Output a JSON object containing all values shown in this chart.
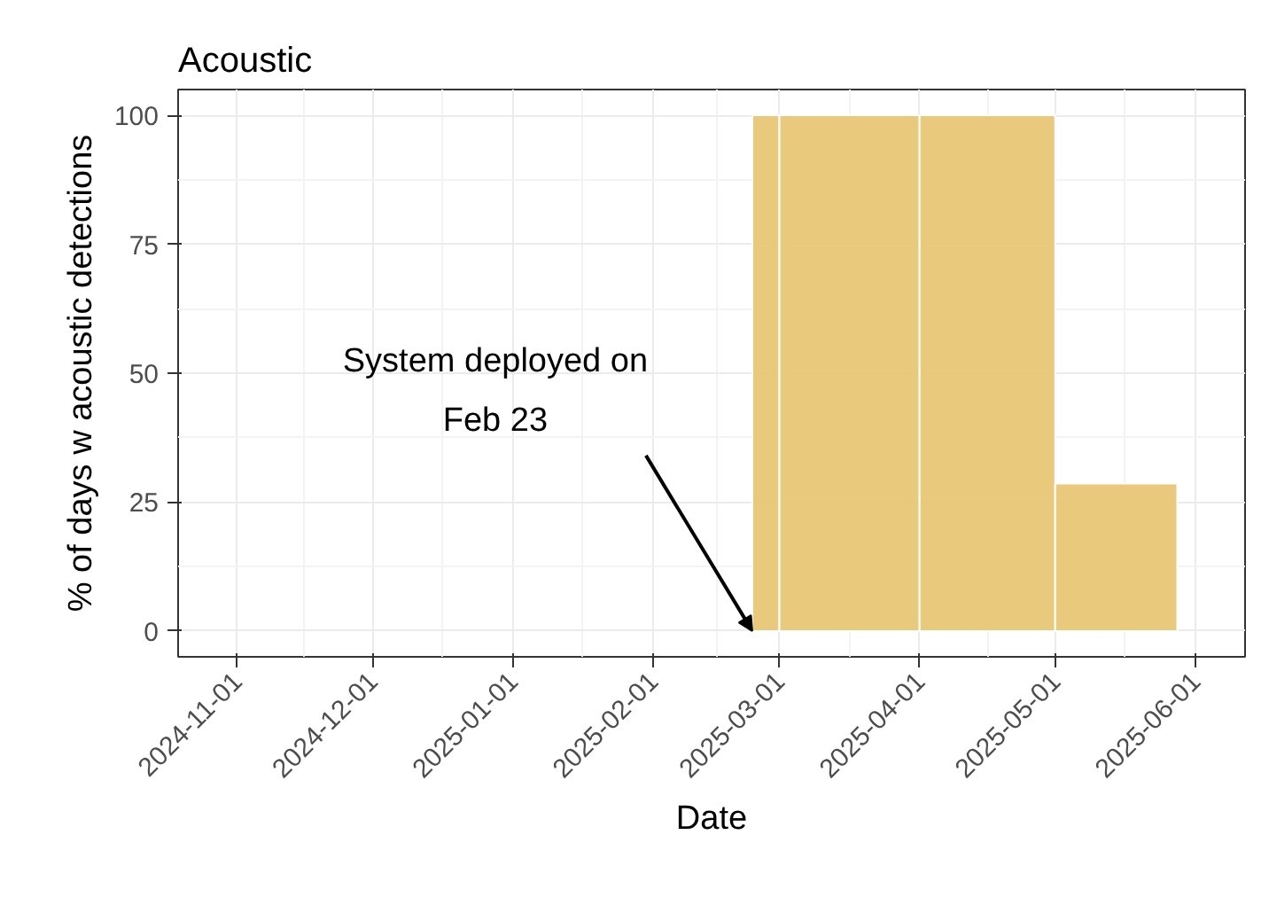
{
  "chart_data": {
    "type": "histogram",
    "title": "Acoustic",
    "xlabel": "Date",
    "ylabel": "% of days w acoustic detections",
    "bins": [
      "2025-02-23",
      "2025-03-01",
      "2025-04-01",
      "2025-05-01",
      "2025-05-28"
    ],
    "values": [
      100,
      100,
      100,
      28.6
    ],
    "color": "#e8c675",
    "xlim": [
      "2024-10-19",
      "2025-06-12"
    ],
    "xticks": [
      "2024-11-01",
      "2024-12-01",
      "2025-01-01",
      "2025-02-01",
      "2025-03-01",
      "2025-04-01",
      "2025-05-01",
      "2025-06-01"
    ],
    "ylim": [
      -5,
      105
    ],
    "yticks": [
      0,
      25,
      50,
      75,
      100
    ],
    "grid": true,
    "annotations": [
      {
        "text": "System deployed on\nFeb 23",
        "x": "2025-02-23",
        "y": 0
      }
    ]
  }
}
